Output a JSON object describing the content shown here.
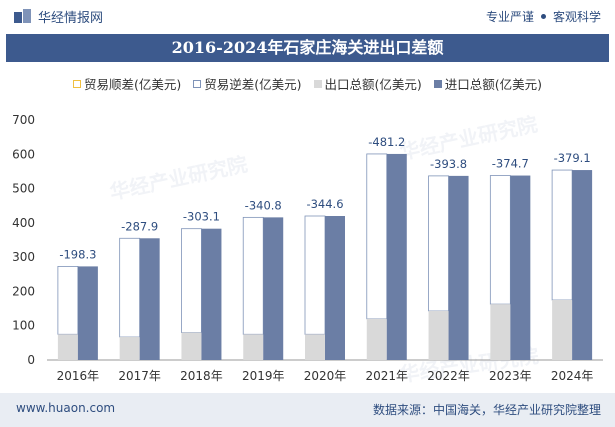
{
  "header": {
    "brand": "华经情报网",
    "slogan_left": "专业严谨",
    "slogan_right": "客观科学"
  },
  "footer": {
    "website": "www.huaon.com",
    "source": "数据来源：中国海关，华经产业研究院整理"
  },
  "watermark": "华经产业研究院",
  "colors": {
    "export": "#d9d9d9",
    "import": "#6b7ea5",
    "header_bar": "#3d5a8e",
    "value_label": "#2e4d7f"
  },
  "chart_data": {
    "type": "bar",
    "title": "2016-2024年石家庄海关进出口差额",
    "categories": [
      "2016年",
      "2017年",
      "2018年",
      "2019年",
      "2020年",
      "2021年",
      "2022年",
      "2023年",
      "2024年"
    ],
    "series": [
      {
        "name": "贸易顺差(亿美元)",
        "values": [
          null,
          null,
          null,
          null,
          null,
          null,
          null,
          null,
          null
        ]
      },
      {
        "name": "贸易逆差(亿美元)",
        "values": [
          198.3,
          287.9,
          303.1,
          340.8,
          344.6,
          481.2,
          393.8,
          374.7,
          379.1
        ]
      },
      {
        "name": "出口总额(亿美元)",
        "values": [
          75,
          67,
          80,
          75,
          75,
          120,
          143,
          163,
          175
        ]
      },
      {
        "name": "进口总额(亿美元)",
        "values": [
          273,
          355,
          383,
          416,
          420,
          601,
          537,
          538,
          554
        ]
      }
    ],
    "value_labels": [
      "-198.3",
      "-287.9",
      "-303.1",
      "-340.8",
      "-344.6",
      "-481.2",
      "-393.8",
      "-374.7",
      "-379.1"
    ],
    "yticks": [
      "0",
      "100",
      "200",
      "300",
      "400",
      "500",
      "600",
      "700"
    ],
    "ylim": [
      0,
      700
    ],
    "xlabel": "",
    "ylabel": "",
    "legend_position": "top-center"
  }
}
